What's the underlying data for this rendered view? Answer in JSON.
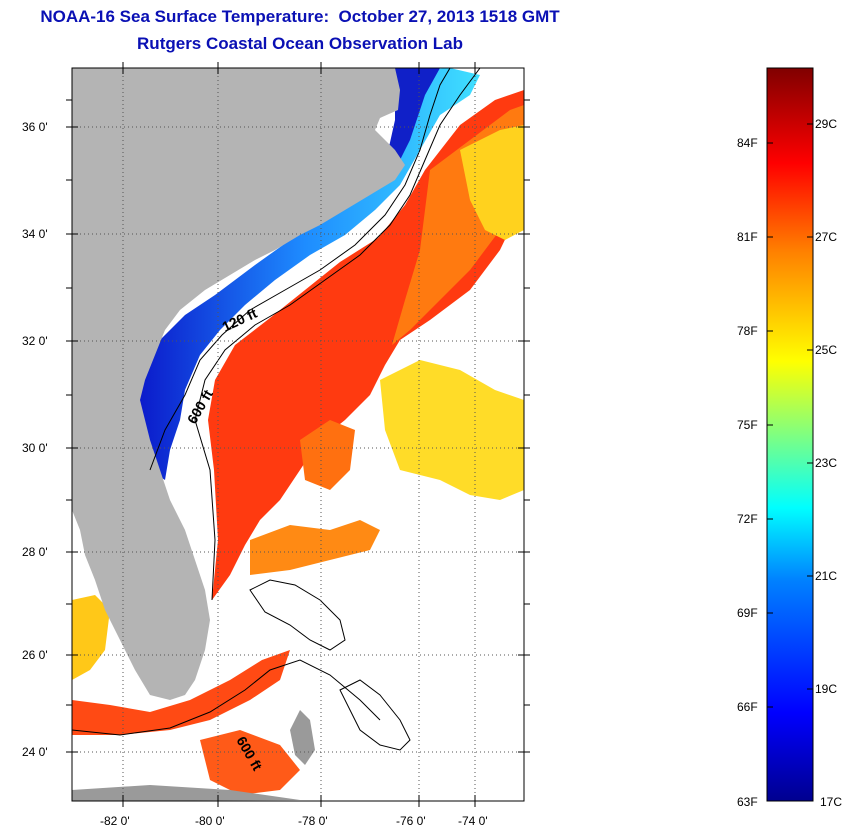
{
  "title": "NOAA-16 Sea Surface Temperature:  October 27, 2013 1518 GMT",
  "subtitle": "Rutgers Coastal Ocean Observation Lab",
  "map": {
    "lon_ticks": [
      "-82 0'",
      "-80 0'",
      "-78 0'",
      "-76 0'",
      "-74 0'"
    ],
    "lat_ticks": [
      "36 0'",
      "34 0'",
      "32 0'",
      "30 0'",
      "28 0'",
      "26 0'",
      "24 0'"
    ],
    "contour_labels": [
      "120 ft",
      "600 ft",
      "600 ft"
    ],
    "colors": {
      "land": "#b4b4b4",
      "no_data": "#ffffff",
      "contour": "#000000"
    }
  },
  "colorbar": {
    "fahrenheit_labels": [
      "84F",
      "81F",
      "78F",
      "75F",
      "72F",
      "69F",
      "66F",
      "63F"
    ],
    "celsius_labels": [
      "29C",
      "27C",
      "25C",
      "23C",
      "21C",
      "19C",
      "17C"
    ],
    "colors": [
      "#00008f",
      "#0000ff",
      "#0080ff",
      "#00ffff",
      "#80ff80",
      "#ffff00",
      "#ff8000",
      "#ff0000",
      "#800000"
    ]
  }
}
